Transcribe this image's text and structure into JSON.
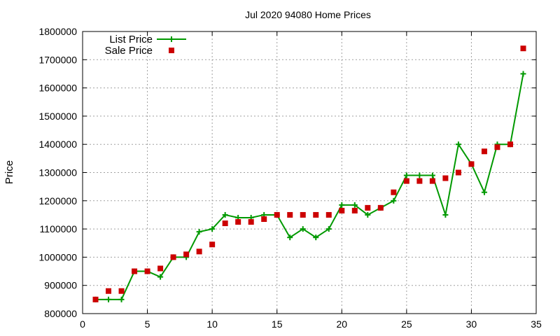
{
  "chart_data": {
    "type": "line",
    "title": "Jul 2020 94080 Home Prices",
    "xlabel": "",
    "ylabel": "Price",
    "xlim": [
      0,
      35
    ],
    "ylim": [
      800000,
      1800000
    ],
    "x_ticks": [
      0,
      5,
      10,
      15,
      20,
      25,
      30,
      35
    ],
    "y_ticks": [
      800000,
      900000,
      1000000,
      1100000,
      1200000,
      1300000,
      1400000,
      1500000,
      1600000,
      1700000,
      1800000
    ],
    "grid": true,
    "legend_position": "top-left",
    "series": [
      {
        "name": "List Price",
        "style": "line-with-plus-markers",
        "color": "#009900",
        "x": [
          1,
          2,
          3,
          4,
          5,
          6,
          7,
          8,
          9,
          10,
          11,
          12,
          13,
          14,
          15,
          16,
          17,
          18,
          19,
          20,
          21,
          22,
          23,
          24,
          25,
          26,
          27,
          28,
          29,
          30,
          31,
          32,
          33,
          34
        ],
        "values": [
          850000,
          850000,
          850000,
          950000,
          950000,
          930000,
          1000000,
          1000000,
          1090000,
          1100000,
          1150000,
          1140000,
          1140000,
          1150000,
          1150000,
          1070000,
          1100000,
          1070000,
          1100000,
          1185000,
          1185000,
          1150000,
          1175000,
          1200000,
          1290000,
          1290000,
          1290000,
          1150000,
          1400000,
          1330000,
          1230000,
          1400000,
          1400000,
          1650000
        ]
      },
      {
        "name": "Sale Price",
        "style": "square-markers",
        "color": "#cc0000",
        "x": [
          1,
          2,
          3,
          4,
          5,
          6,
          7,
          8,
          9,
          10,
          11,
          12,
          13,
          14,
          15,
          16,
          17,
          18,
          19,
          20,
          21,
          22,
          23,
          24,
          25,
          26,
          27,
          28,
          29,
          30,
          31,
          32,
          33,
          34
        ],
        "values": [
          850000,
          880000,
          880000,
          950000,
          950000,
          960000,
          1000000,
          1010000,
          1020000,
          1045000,
          1120000,
          1125000,
          1125000,
          1135000,
          1150000,
          1150000,
          1150000,
          1150000,
          1150000,
          1165000,
          1165000,
          1175000,
          1175000,
          1230000,
          1270000,
          1270000,
          1270000,
          1280000,
          1300000,
          1330000,
          1375000,
          1390000,
          1400000,
          1740000
        ]
      }
    ]
  }
}
